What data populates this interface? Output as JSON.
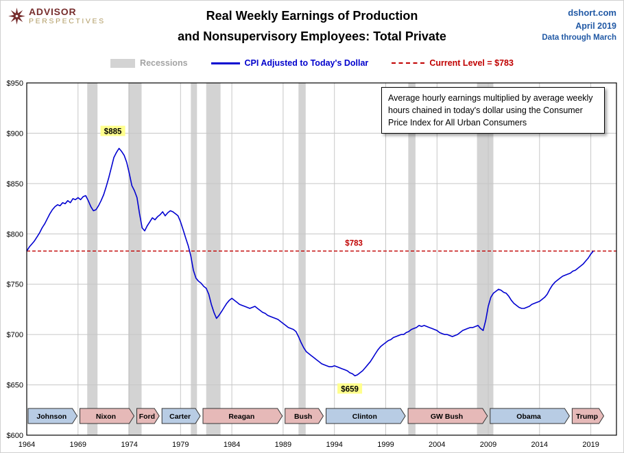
{
  "header": {
    "logo": {
      "line1": "ADVISOR",
      "line2": "PERSPECTIVES"
    },
    "title_line1": "Real Weekly Earnings of Production",
    "title_line2": "and Nonsupervisory Employees: Total Private",
    "source": {
      "site": "dshort.com",
      "date": "April 2019",
      "note": "Data through March"
    }
  },
  "legend": {
    "recessions_label": "Recessions",
    "series_label": "CPI Adjusted to Today's Dollar",
    "current_level_label": "Current Level = $783"
  },
  "annotation_box": {
    "text": "Average hourly earnings multiplied by average weekly hours chained in today's dollar using the Consumer Price Index for All Urban Consumers"
  },
  "chart_data": {
    "type": "line",
    "title": "Real Weekly Earnings of Production and Nonsupervisory Employees: Total Private",
    "xlabel": "",
    "ylabel": "",
    "x_domain": [
      1964,
      2021.5
    ],
    "y_domain": [
      600,
      950
    ],
    "x_start": 1964.0,
    "x_step": 0.25,
    "grid": true,
    "y_ticks": [
      {
        "v": 600,
        "label": "$600"
      },
      {
        "v": 650,
        "label": "$650"
      },
      {
        "v": 700,
        "label": "$700"
      },
      {
        "v": 750,
        "label": "$750"
      },
      {
        "v": 800,
        "label": "$800"
      },
      {
        "v": 850,
        "label": "$850"
      },
      {
        "v": 900,
        "label": "$900"
      },
      {
        "v": 950,
        "label": "$950"
      }
    ],
    "x_ticks": [
      {
        "v": 1964,
        "label": "1964"
      },
      {
        "v": 1969,
        "label": "1969"
      },
      {
        "v": 1974,
        "label": "1974"
      },
      {
        "v": 1979,
        "label": "1979"
      },
      {
        "v": 1984,
        "label": "1984"
      },
      {
        "v": 1989,
        "label": "1989"
      },
      {
        "v": 1994,
        "label": "1994"
      },
      {
        "v": 1999,
        "label": "1999"
      },
      {
        "v": 2004,
        "label": "2004"
      },
      {
        "v": 2009,
        "label": "2009"
      },
      {
        "v": 2014,
        "label": "2014"
      },
      {
        "v": 2019,
        "label": "2019"
      }
    ],
    "series": [
      {
        "name": "CPI Adjusted to Today's Dollar",
        "color": "#0000d0",
        "values": [
          783,
          787,
          790,
          793,
          797,
          801,
          806,
          810,
          815,
          820,
          824,
          827,
          829,
          828,
          831,
          830,
          833,
          831,
          835,
          834,
          836,
          834,
          837,
          838,
          833,
          827,
          823,
          824,
          828,
          833,
          839,
          847,
          856,
          866,
          876,
          881,
          885,
          882,
          878,
          871,
          860,
          848,
          843,
          836,
          820,
          806,
          803,
          808,
          812,
          816,
          814,
          817,
          819,
          822,
          818,
          821,
          823,
          822,
          820,
          818,
          812,
          804,
          796,
          788,
          778,
          764,
          756,
          753,
          751,
          748,
          746,
          740,
          730,
          722,
          716,
          719,
          723,
          727,
          731,
          734,
          736,
          734,
          732,
          730,
          729,
          728,
          727,
          726,
          727,
          728,
          726,
          724,
          722,
          721,
          719,
          718,
          717,
          716,
          715,
          713,
          711,
          709,
          707,
          706,
          705,
          703,
          698,
          692,
          687,
          683,
          681,
          679,
          677,
          675,
          673,
          671,
          670,
          669,
          668,
          668,
          669,
          668,
          667,
          666,
          665,
          664,
          662,
          661,
          659,
          660,
          662,
          664,
          667,
          670,
          673,
          677,
          681,
          685,
          688,
          690,
          692,
          694,
          695,
          697,
          698,
          699,
          700,
          700,
          702,
          703,
          705,
          706,
          707,
          709,
          708,
          709,
          708,
          707,
          706,
          705,
          704,
          702,
          701,
          700,
          700,
          699,
          698,
          699,
          700,
          702,
          704,
          705,
          706,
          707,
          707,
          708,
          709,
          706,
          704,
          714,
          728,
          737,
          741,
          743,
          745,
          744,
          742,
          741,
          738,
          734,
          731,
          729,
          727,
          726,
          726,
          727,
          728,
          730,
          731,
          732,
          733,
          735,
          737,
          740,
          745,
          749,
          752,
          754,
          756,
          758,
          759,
          760,
          761,
          763,
          764,
          766,
          768,
          770,
          773,
          776,
          780,
          783
        ]
      }
    ],
    "current_level": 783,
    "current_level_color": "#c00000",
    "recession_color": "#d3d3d3",
    "recessions": [
      [
        1969.9,
        1970.9
      ],
      [
        1973.9,
        1975.2
      ],
      [
        1980.0,
        1980.6
      ],
      [
        1981.5,
        1982.9
      ],
      [
        1990.5,
        1991.2
      ],
      [
        2001.2,
        2001.9
      ],
      [
        2007.9,
        2009.5
      ]
    ],
    "annotations": [
      {
        "text": "$885",
        "x": 1972.4,
        "y": 902,
        "bg": "#ffff8c",
        "color": "#000000"
      },
      {
        "text": "$659",
        "x": 1995.5,
        "y": 646,
        "bg": "#ffff8c",
        "color": "#000000"
      },
      {
        "text": "$783",
        "x": 1995.9,
        "y": 791,
        "color": "#c00000"
      }
    ],
    "party_colors": {
      "D": "#b8cce4",
      "R": "#e6b9b8"
    },
    "presidents": [
      {
        "name": "Johnson",
        "start": 1964.0,
        "end": 1969.05,
        "party": "D"
      },
      {
        "name": "Nixon",
        "start": 1969.05,
        "end": 1974.6,
        "party": "R"
      },
      {
        "name": "Ford",
        "start": 1974.6,
        "end": 1977.05,
        "party": "R"
      },
      {
        "name": "Carter",
        "start": 1977.05,
        "end": 1981.05,
        "party": "D"
      },
      {
        "name": "Reagan",
        "start": 1981.05,
        "end": 1989.05,
        "party": "R"
      },
      {
        "name": "Bush",
        "start": 1989.05,
        "end": 1993.05,
        "party": "R"
      },
      {
        "name": "Clinton",
        "start": 1993.05,
        "end": 2001.05,
        "party": "D"
      },
      {
        "name": "GW Bush",
        "start": 2001.05,
        "end": 2009.05,
        "party": "R"
      },
      {
        "name": "Obama",
        "start": 2009.05,
        "end": 2017.05,
        "party": "D"
      },
      {
        "name": "Trump",
        "start": 2017.05,
        "end": 2020.4,
        "party": "R"
      }
    ]
  }
}
